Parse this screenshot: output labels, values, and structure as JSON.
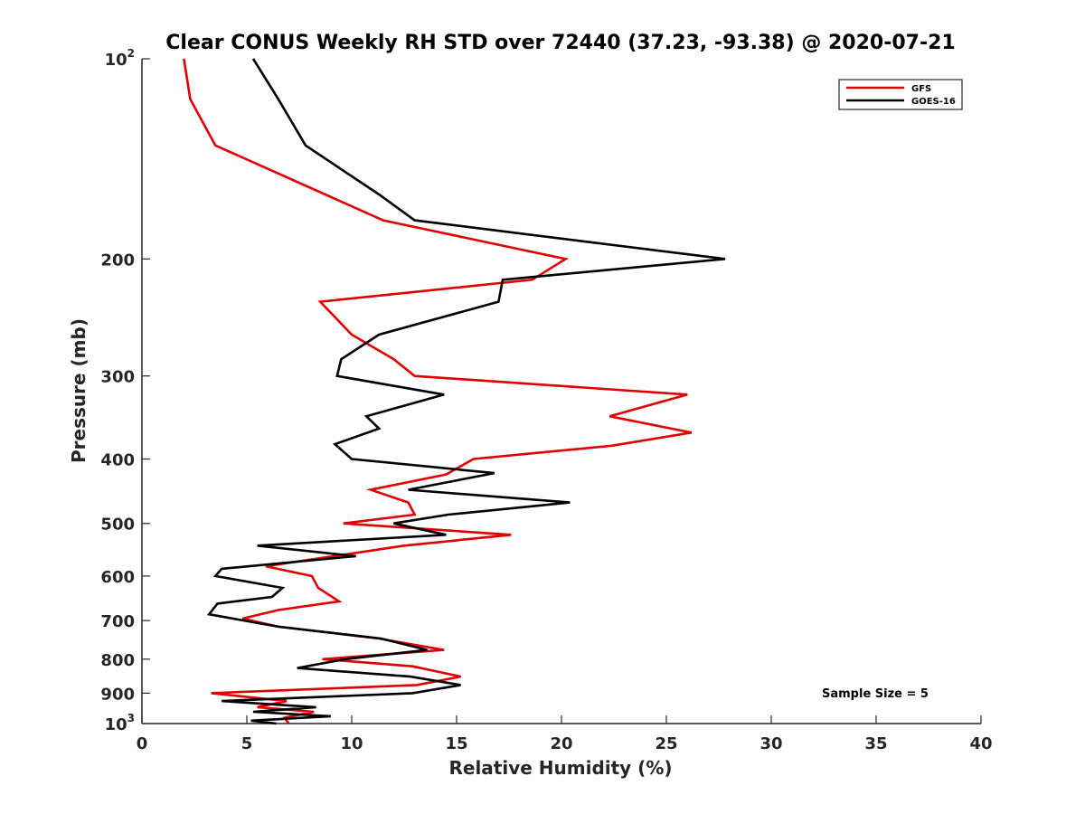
{
  "chart_data": {
    "type": "line",
    "title": "Clear CONUS Weekly RH STD over 72440 (37.23, -93.38) @ 2020-07-21",
    "xlabel": "Relative Humidity (%)",
    "ylabel": "Pressure (mb)",
    "xlim": [
      0,
      40
    ],
    "ylim": [
      100,
      1000
    ],
    "y_scale": "log",
    "y_reversed": true,
    "x_ticks": [
      "0",
      "5",
      "10",
      "15",
      "20",
      "25",
      "30",
      "35",
      "40"
    ],
    "x_tick_values": [
      0,
      5,
      10,
      15,
      20,
      25,
      30,
      35,
      40
    ],
    "y_ticks": [
      {
        "value": 100,
        "base": "10",
        "exp": "2"
      },
      {
        "value": 200,
        "base": "200",
        "exp": ""
      },
      {
        "value": 300,
        "base": "300",
        "exp": ""
      },
      {
        "value": 400,
        "base": "400",
        "exp": ""
      },
      {
        "value": 500,
        "base": "500",
        "exp": ""
      },
      {
        "value": 600,
        "base": "600",
        "exp": ""
      },
      {
        "value": 700,
        "base": "700",
        "exp": ""
      },
      {
        "value": 800,
        "base": "800",
        "exp": ""
      },
      {
        "value": 900,
        "base": "900",
        "exp": ""
      },
      {
        "value": 1000,
        "base": "10",
        "exp": "3"
      }
    ],
    "grid": false,
    "legend_position": "top-right",
    "annotation": "Sample Size = 5",
    "series": [
      {
        "name": "GFS",
        "color": "#e00000",
        "points": [
          [
            2.0,
            100
          ],
          [
            2.3,
            115
          ],
          [
            3.5,
            135
          ],
          [
            11.5,
            175
          ],
          [
            20.2,
            200
          ],
          [
            18.6,
            215
          ],
          [
            8.5,
            232
          ],
          [
            10.0,
            260
          ],
          [
            12.0,
            283
          ],
          [
            13.0,
            300
          ],
          [
            26.0,
            320
          ],
          [
            22.3,
            345
          ],
          [
            26.2,
            365
          ],
          [
            22.4,
            382
          ],
          [
            15.8,
            400
          ],
          [
            14.5,
            422
          ],
          [
            10.9,
            445
          ],
          [
            12.7,
            465
          ],
          [
            13.0,
            485
          ],
          [
            9.6,
            500
          ],
          [
            17.6,
            520
          ],
          [
            12.5,
            540
          ],
          [
            5.9,
            580
          ],
          [
            8.1,
            600
          ],
          [
            8.4,
            625
          ],
          [
            9.4,
            655
          ],
          [
            6.5,
            675
          ],
          [
            4.8,
            695
          ],
          [
            6.5,
            715
          ],
          [
            11.3,
            745
          ],
          [
            14.4,
            775
          ],
          [
            8.6,
            800
          ],
          [
            12.9,
            820
          ],
          [
            15.2,
            850
          ],
          [
            13.1,
            875
          ],
          [
            3.3,
            900
          ],
          [
            6.9,
            925
          ],
          [
            5.5,
            945
          ],
          [
            8.2,
            960
          ],
          [
            6.8,
            980
          ],
          [
            7.0,
            1000
          ]
        ]
      },
      {
        "name": "GOES-16",
        "color": "#000000",
        "points": [
          [
            5.3,
            100
          ],
          [
            6.5,
            115
          ],
          [
            7.8,
            135
          ],
          [
            11.3,
            160
          ],
          [
            13.0,
            175
          ],
          [
            27.8,
            200
          ],
          [
            17.2,
            215
          ],
          [
            17.0,
            232
          ],
          [
            11.3,
            260
          ],
          [
            9.5,
            283
          ],
          [
            9.3,
            300
          ],
          [
            14.4,
            320
          ],
          [
            10.7,
            345
          ],
          [
            11.3,
            360
          ],
          [
            9.2,
            380
          ],
          [
            10.0,
            400
          ],
          [
            16.8,
            420
          ],
          [
            12.7,
            445
          ],
          [
            20.4,
            465
          ],
          [
            14.6,
            485
          ],
          [
            12.0,
            500
          ],
          [
            14.5,
            520
          ],
          [
            5.5,
            540
          ],
          [
            10.2,
            560
          ],
          [
            3.8,
            585
          ],
          [
            3.5,
            600
          ],
          [
            6.7,
            625
          ],
          [
            6.2,
            645
          ],
          [
            3.6,
            660
          ],
          [
            3.2,
            685
          ],
          [
            6.5,
            715
          ],
          [
            11.4,
            745
          ],
          [
            13.6,
            775
          ],
          [
            9.7,
            800
          ],
          [
            7.4,
            825
          ],
          [
            12.8,
            850
          ],
          [
            15.2,
            875
          ],
          [
            12.9,
            900
          ],
          [
            3.8,
            925
          ],
          [
            8.3,
            945
          ],
          [
            5.3,
            960
          ],
          [
            9.0,
            975
          ],
          [
            5.2,
            990
          ],
          [
            6.4,
            1000
          ]
        ]
      }
    ]
  }
}
